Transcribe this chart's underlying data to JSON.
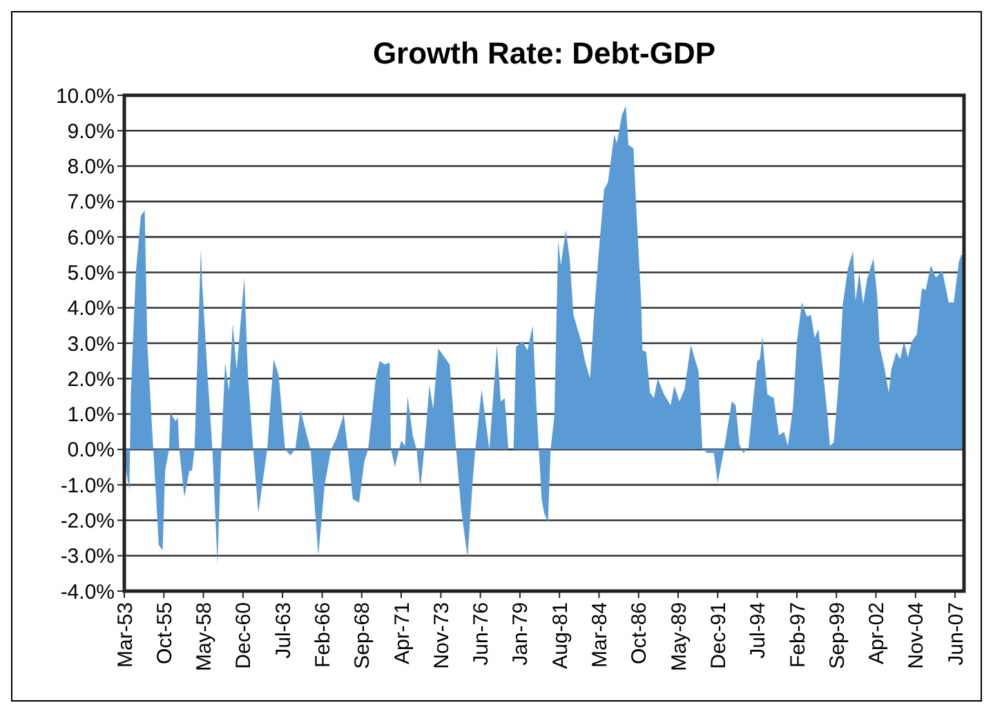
{
  "chart_data": {
    "type": "area",
    "title": "Growth Rate: Debt-GDP",
    "x": [
      "1953-03",
      "1953-07",
      "1953-08",
      "1953-12",
      "1954-04",
      "1954-07",
      "1954-09",
      "1955-01",
      "1955-04",
      "1955-06",
      "1955-09",
      "1955-11",
      "1956-02",
      "1956-03",
      "1956-07",
      "1956-09",
      "1956-10",
      "1957-02",
      "1957-06",
      "1957-08",
      "1957-10",
      "1958-03",
      "1958-04",
      "1958-08",
      "1958-12",
      "1959-04",
      "1959-07",
      "1959-10",
      "1960-01",
      "1960-04",
      "1960-07",
      "1961-01",
      "1961-04",
      "1961-08",
      "1961-12",
      "1962-07",
      "1962-12",
      "1963-04",
      "1963-09",
      "1964-01",
      "1964-05",
      "1964-09",
      "1965-02",
      "1965-05",
      "1965-11",
      "1966-04",
      "1966-09",
      "1967-01",
      "1967-07",
      "1967-10",
      "1968-02",
      "1968-07",
      "1968-11",
      "1969-02",
      "1969-08",
      "1969-11",
      "1970-03",
      "1970-07",
      "1970-08",
      "1970-11",
      "1971-04",
      "1971-07",
      "1971-09",
      "1972-01",
      "1972-04",
      "1972-07",
      "1972-10",
      "1973-02",
      "1973-05",
      "1973-09",
      "1974-01",
      "1974-06",
      "1974-11",
      "1975-03",
      "1975-08",
      "1975-12",
      "1976-02",
      "1976-07",
      "1977-01",
      "1977-07",
      "1977-10",
      "1978-01",
      "1978-04",
      "1978-08",
      "1978-10",
      "1979-03",
      "1979-07",
      "1979-11",
      "1980-02",
      "1980-06",
      "1980-08",
      "1980-11",
      "1981-01",
      "1981-04",
      "1981-07",
      "1981-09",
      "1982-01",
      "1982-04",
      "1982-07",
      "1983-01",
      "1983-04",
      "1983-08",
      "1983-11",
      "1984-03",
      "1984-07",
      "1984-10",
      "1985-03",
      "1985-05",
      "1985-09",
      "1985-12",
      "1986-02",
      "1986-06",
      "1986-08",
      "1986-12",
      "1987-01",
      "1987-04",
      "1987-07",
      "1987-10",
      "1988-01",
      "1988-06",
      "1988-11",
      "1989-02",
      "1989-06",
      "1989-10",
      "1990-03",
      "1990-09",
      "1990-12",
      "1991-04",
      "1991-09",
      "1991-12",
      "1992-05",
      "1992-11",
      "1993-02",
      "1993-05",
      "1993-08",
      "1993-11",
      "1993-12",
      "1994-04",
      "1994-07",
      "1994-09",
      "1994-11",
      "1995-03",
      "1995-08",
      "1995-12",
      "1996-04",
      "1996-07",
      "1996-11",
      "1997-02",
      "1997-06",
      "1997-10",
      "1998-01",
      "1998-04",
      "1998-07",
      "1998-10",
      "1999-02",
      "1999-04",
      "1999-07",
      "1999-11",
      "2000-02",
      "2000-06",
      "2000-10",
      "2000-12",
      "2001-03",
      "2001-06",
      "2001-09",
      "2002-02",
      "2002-05",
      "2002-07",
      "2002-11",
      "2003-02",
      "2003-04",
      "2003-08",
      "2003-11",
      "2004-02",
      "2004-05",
      "2004-08",
      "2004-12",
      "2005-04",
      "2005-07",
      "2005-11",
      "2006-03",
      "2006-08",
      "2007-01",
      "2007-05",
      "2007-09",
      "2007-11",
      "2008-01"
    ],
    "values": [
      -0.3,
      -1.15,
      1.5,
      5.0,
      6.6,
      6.75,
      3.0,
      0.4,
      -1.4,
      -2.7,
      -2.85,
      -0.6,
      0,
      1.05,
      0.8,
      0.9,
      0,
      -1.35,
      -0.6,
      -0.6,
      0,
      5.65,
      4.7,
      2.25,
      0,
      -3.25,
      0,
      2.45,
      1.65,
      3.55,
      2.25,
      4.85,
      2.0,
      0,
      -1.8,
      0,
      2.55,
      2.1,
      0,
      -0.17,
      0,
      1.12,
      0.4,
      0,
      -3.0,
      -1.0,
      0,
      0.3,
      1.0,
      0,
      -1.4,
      -1.5,
      -0.35,
      0,
      2.0,
      2.5,
      2.4,
      2.45,
      0,
      -0.5,
      0.25,
      0.1,
      1.5,
      0.4,
      0,
      -1.1,
      0,
      1.8,
      1.15,
      2.85,
      2.65,
      2.4,
      0,
      -1.7,
      -3.05,
      -0.9,
      0,
      1.7,
      0,
      2.95,
      1.35,
      1.45,
      0,
      0,
      2.9,
      3.05,
      2.8,
      3.5,
      1.2,
      -1.4,
      -1.8,
      -2.05,
      0,
      0.95,
      5.9,
      5.2,
      6.2,
      5.4,
      3.8,
      3.05,
      2.5,
      2.0,
      3.8,
      5.65,
      7.35,
      7.55,
      8.9,
      8.65,
      9.45,
      9.7,
      8.6,
      8.5,
      6.95,
      4.2,
      2.8,
      2.75,
      1.6,
      1.45,
      2.0,
      1.55,
      1.25,
      1.8,
      1.35,
      1.7,
      2.95,
      2.2,
      0,
      -0.1,
      -0.1,
      -0.95,
      0,
      1.35,
      1.25,
      0.15,
      -0.1,
      0,
      0,
      1.45,
      2.5,
      2.55,
      3.2,
      1.55,
      1.45,
      0.4,
      0.5,
      0.1,
      1.2,
      3.05,
      4.15,
      3.75,
      3.8,
      3.15,
      3.4,
      2.4,
      0.95,
      0.1,
      0.2,
      2.0,
      4.1,
      5.1,
      5.6,
      4.2,
      5.0,
      4.1,
      4.8,
      5.4,
      4.35,
      2.9,
      2.25,
      1.6,
      2.25,
      2.75,
      2.55,
      3.05,
      2.6,
      3.05,
      3.25,
      4.55,
      4.5,
      5.2,
      4.85,
      5.05,
      4.15,
      4.15,
      5.3,
      5.5,
      5.45
    ],
    "color": "#5b9bd5",
    "xlim": [
      "1953-03",
      "2008-01"
    ],
    "xticks": [
      {
        "value": "1953-03",
        "label": "Mar-53"
      },
      {
        "value": "1955-10",
        "label": "Oct-55"
      },
      {
        "value": "1958-05",
        "label": "May-58"
      },
      {
        "value": "1960-12",
        "label": "Dec-60"
      },
      {
        "value": "1963-07",
        "label": "Jul-63"
      },
      {
        "value": "1966-02",
        "label": "Feb-66"
      },
      {
        "value": "1968-09",
        "label": "Sep-68"
      },
      {
        "value": "1971-04",
        "label": "Apr-71"
      },
      {
        "value": "1973-11",
        "label": "Nov-73"
      },
      {
        "value": "1976-06",
        "label": "Jun-76"
      },
      {
        "value": "1979-01",
        "label": "Jan-79"
      },
      {
        "value": "1981-08",
        "label": "Aug-81"
      },
      {
        "value": "1984-03",
        "label": "Mar-84"
      },
      {
        "value": "1986-10",
        "label": "Oct-86"
      },
      {
        "value": "1989-05",
        "label": "May-89"
      },
      {
        "value": "1991-12",
        "label": "Dec-91"
      },
      {
        "value": "1994-07",
        "label": "Jul-94"
      },
      {
        "value": "1997-02",
        "label": "Feb-97"
      },
      {
        "value": "1999-09",
        "label": "Sep-99"
      },
      {
        "value": "2002-04",
        "label": "Apr-02"
      },
      {
        "value": "2004-11",
        "label": "Nov-04"
      },
      {
        "value": "2007-06",
        "label": "Jun-07"
      }
    ],
    "ylim": [
      -4,
      10
    ],
    "yticks": [
      {
        "value": -4,
        "label": "-4.0%"
      },
      {
        "value": -3,
        "label": "-3.0%"
      },
      {
        "value": -2,
        "label": "-2.0%"
      },
      {
        "value": -1,
        "label": "-1.0%"
      },
      {
        "value": 0,
        "label": "0.0%"
      },
      {
        "value": 1,
        "label": "1.0%"
      },
      {
        "value": 2,
        "label": "2.0%"
      },
      {
        "value": 3,
        "label": "3.0%"
      },
      {
        "value": 4,
        "label": "4.0%"
      },
      {
        "value": 5,
        "label": "5.0%"
      },
      {
        "value": 6,
        "label": "6.0%"
      },
      {
        "value": 7,
        "label": "7.0%"
      },
      {
        "value": 8,
        "label": "8.0%"
      },
      {
        "value": 9,
        "label": "9.0%"
      },
      {
        "value": 10,
        "label": "10.0%"
      }
    ],
    "grid": "y"
  }
}
